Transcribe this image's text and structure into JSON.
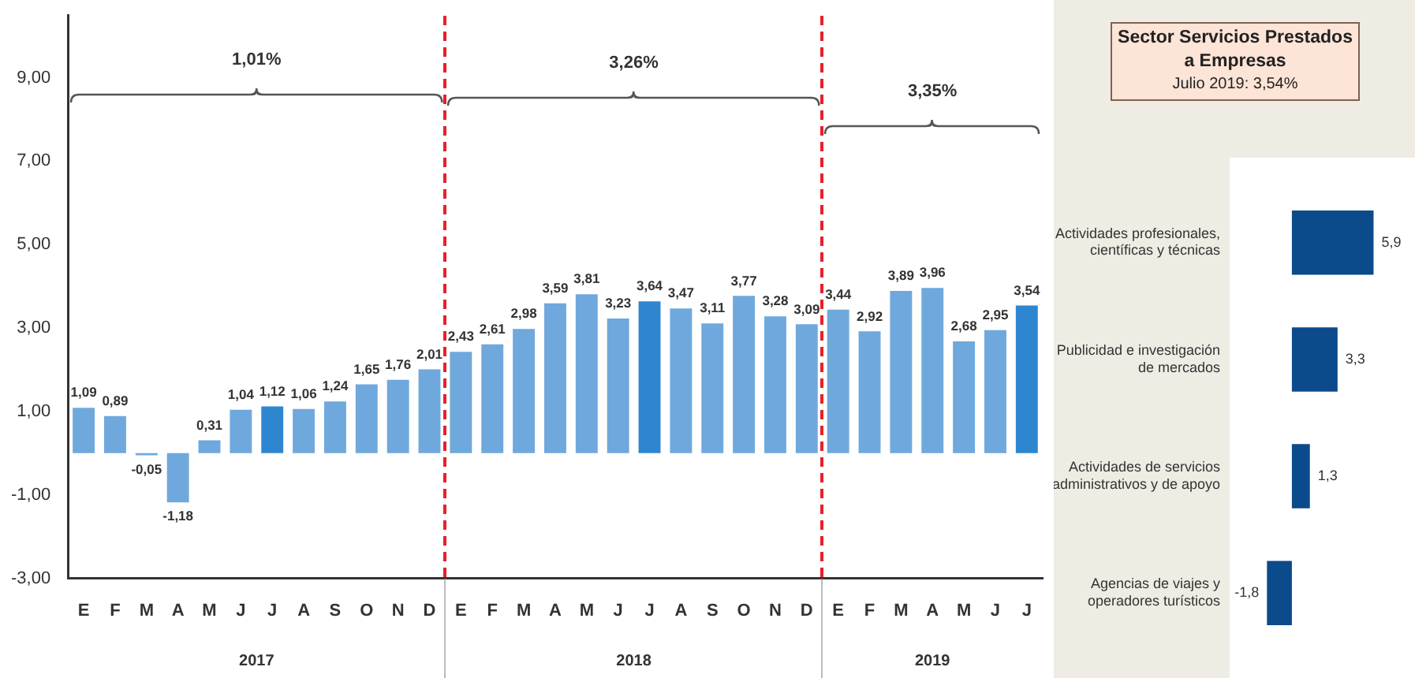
{
  "chart_data": [
    {
      "type": "bar",
      "categories": [
        "E",
        "F",
        "M",
        "A",
        "M",
        "J",
        "J",
        "A",
        "S",
        "O",
        "N",
        "D",
        "E",
        "F",
        "M",
        "A",
        "M",
        "J",
        "J",
        "A",
        "S",
        "O",
        "N",
        "D",
        "E",
        "F",
        "M",
        "A",
        "M",
        "J",
        "J"
      ],
      "values": [
        1.09,
        0.89,
        -0.05,
        -1.18,
        0.31,
        1.04,
        1.12,
        1.06,
        1.24,
        1.65,
        1.76,
        2.01,
        2.43,
        2.61,
        2.98,
        3.59,
        3.81,
        3.23,
        3.64,
        3.47,
        3.11,
        3.77,
        3.28,
        3.09,
        3.44,
        2.92,
        3.89,
        3.96,
        2.68,
        2.95,
        3.54
      ],
      "value_labels": [
        "1,09",
        "0,89",
        "-0,05",
        "-1,18",
        "0,31",
        "1,04",
        "1,12",
        "1,06",
        "1,24",
        "1,65",
        "1,76",
        "2,01",
        "2,43",
        "2,61",
        "2,98",
        "3,59",
        "3,81",
        "3,23",
        "3,64",
        "3,47",
        "3,11",
        "3,77",
        "3,28",
        "3,09",
        "3,44",
        "2,92",
        "3,89",
        "3,96",
        "2,68",
        "2,95",
        "3,54"
      ],
      "colors": [
        "#6fa8dc",
        "#6fa8dc",
        "#6fa8dc",
        "#6fa8dc",
        "#6fa8dc",
        "#6fa8dc",
        "#2f86d0",
        "#6fa8dc",
        "#6fa8dc",
        "#6fa8dc",
        "#6fa8dc",
        "#6fa8dc",
        "#6fa8dc",
        "#6fa8dc",
        "#6fa8dc",
        "#6fa8dc",
        "#6fa8dc",
        "#6fa8dc",
        "#2f86d0",
        "#6fa8dc",
        "#6fa8dc",
        "#6fa8dc",
        "#6fa8dc",
        "#6fa8dc",
        "#6fa8dc",
        "#6fa8dc",
        "#6fa8dc",
        "#6fa8dc",
        "#6fa8dc",
        "#6fa8dc",
        "#2f86d0"
      ],
      "ylim": [
        -3,
        10.5
      ],
      "yticks": [
        {
          "value": -3,
          "label": "-3,00"
        },
        {
          "value": -1,
          "label": "-1,00"
        },
        {
          "value": 1,
          "label": "1,00"
        },
        {
          "value": 3,
          "label": "3,00"
        },
        {
          "value": 5,
          "label": "5,00"
        },
        {
          "value": 7,
          "label": "7,00"
        },
        {
          "value": 9,
          "label": "9,00"
        }
      ],
      "annotations": [
        "1,01%",
        "3,26%",
        "3,35%",
        "2017",
        "2018",
        "2019"
      ],
      "grid": false,
      "legend": false
    },
    {
      "type": "bar",
      "orientation": "horizontal",
      "title": "Sector Servicios Prestados a Empresas",
      "subtitle": "Julio 2019: 3,54%",
      "categories": [
        "Actividades profesionales, científicas y técnicas",
        "Publicidad e investigación de mercados",
        "Actividades de servicios administrativos y de apoyo",
        "Agencias de viajes y operadores turísticos"
      ],
      "values": [
        5.9,
        3.3,
        1.3,
        -1.8
      ],
      "value_labels": [
        "5,9",
        "3,3",
        "1,3",
        "-1,8"
      ],
      "color": "#0b4a8b",
      "tick_labels": "y",
      "grid": false,
      "legend": false
    }
  ]
}
